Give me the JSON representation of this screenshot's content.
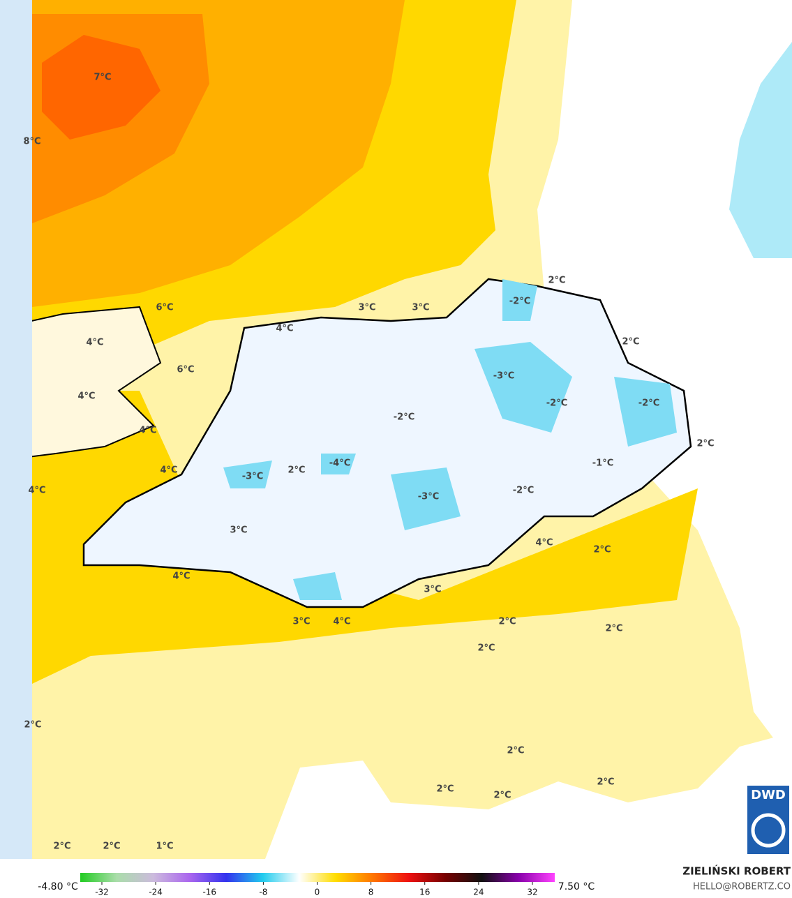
{
  "labels": [
    "7°C",
    "8°C",
    "6°C",
    "4°C",
    "6°C",
    "4°C",
    "4°C",
    "4°C",
    "4°C",
    "4°C",
    "3°C",
    "3°C",
    "2°C",
    "-2°C",
    "2°C",
    "-3°C",
    "-2°C",
    "-2°C",
    "-2°C",
    "2°C",
    "-1°C",
    "-4°C",
    "2°C",
    "-3°C",
    "-2°C",
    "-3°C",
    "3°C",
    "4°C",
    "2°C",
    "4°C",
    "3°C",
    "3°C",
    "4°C",
    "2°C",
    "2°C",
    "2°C",
    "2°C",
    "2°C",
    "2°C",
    "2°C",
    "2°C",
    "2°C",
    "2°C",
    "1°C"
  ],
  "colorbar": {
    "min_label": "-4.80 °C",
    "max_label": "7.50 °C",
    "ticks": [
      -32,
      -24,
      -16,
      -8,
      0,
      8,
      16,
      24,
      32
    ],
    "colors": [
      "#22cc22",
      "#aaddaa",
      "#ccbbdd",
      "#aa66ee",
      "#3333ee",
      "#22ccee",
      "#ffffff",
      "#ffdd00",
      "#ff7700",
      "#ee1111",
      "#770000",
      "#111111",
      "#8800aa",
      "#ff44ff"
    ]
  },
  "credit": {
    "name": "ZIELIŃSKI ROBERT",
    "contact": "HELLO@ROBERTZ.CO",
    "logo": "DWD"
  }
}
